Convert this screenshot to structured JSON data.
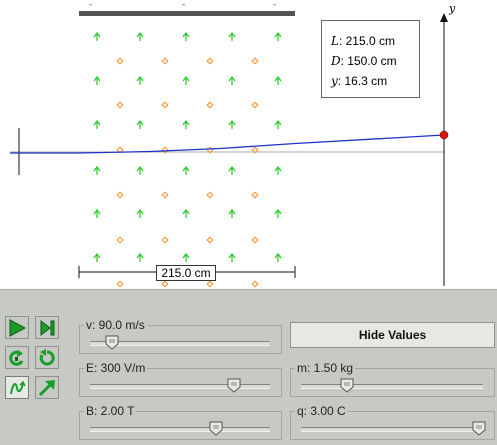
{
  "simulation": {
    "plate_top_signs": [
      "-",
      "-",
      "-"
    ],
    "plate_bottom_signs": [
      "+",
      "+",
      "+"
    ],
    "axis_label": "y",
    "values_box": {
      "L": {
        "symbol": "L",
        "value": ": 215.0 cm"
      },
      "D": {
        "symbol": "D",
        "value": ": 150.0 cm"
      },
      "y": {
        "symbol": "y",
        "value": ": 16.3 cm"
      }
    },
    "plate_length_label": "215.0 cm",
    "colors": {
      "plate": "#555555",
      "field_arrow": "#22cc22",
      "b_field_marker": "#ff8a1f",
      "trajectory": "#1e32c8",
      "particle": "#dd1111",
      "reference_line": "#aaaaaa"
    }
  },
  "controls": {
    "icons": [
      "play-icon",
      "step-icon",
      "rewind-icon",
      "reset-icon",
      "trace-icon",
      "vector-icon"
    ],
    "hide_values_label": "Hide Values",
    "sliders": {
      "v": {
        "label": "v: 90.0 m/s",
        "position": 0.12
      },
      "E": {
        "label": "E: 300 V/m",
        "position": 0.8
      },
      "B": {
        "label": "B: 2.00 T",
        "position": 0.7
      },
      "m": {
        "label": "m: 1.50 kg",
        "position": 0.25
      },
      "q": {
        "label": "q: 3.00 C",
        "position": 0.98
      }
    }
  }
}
